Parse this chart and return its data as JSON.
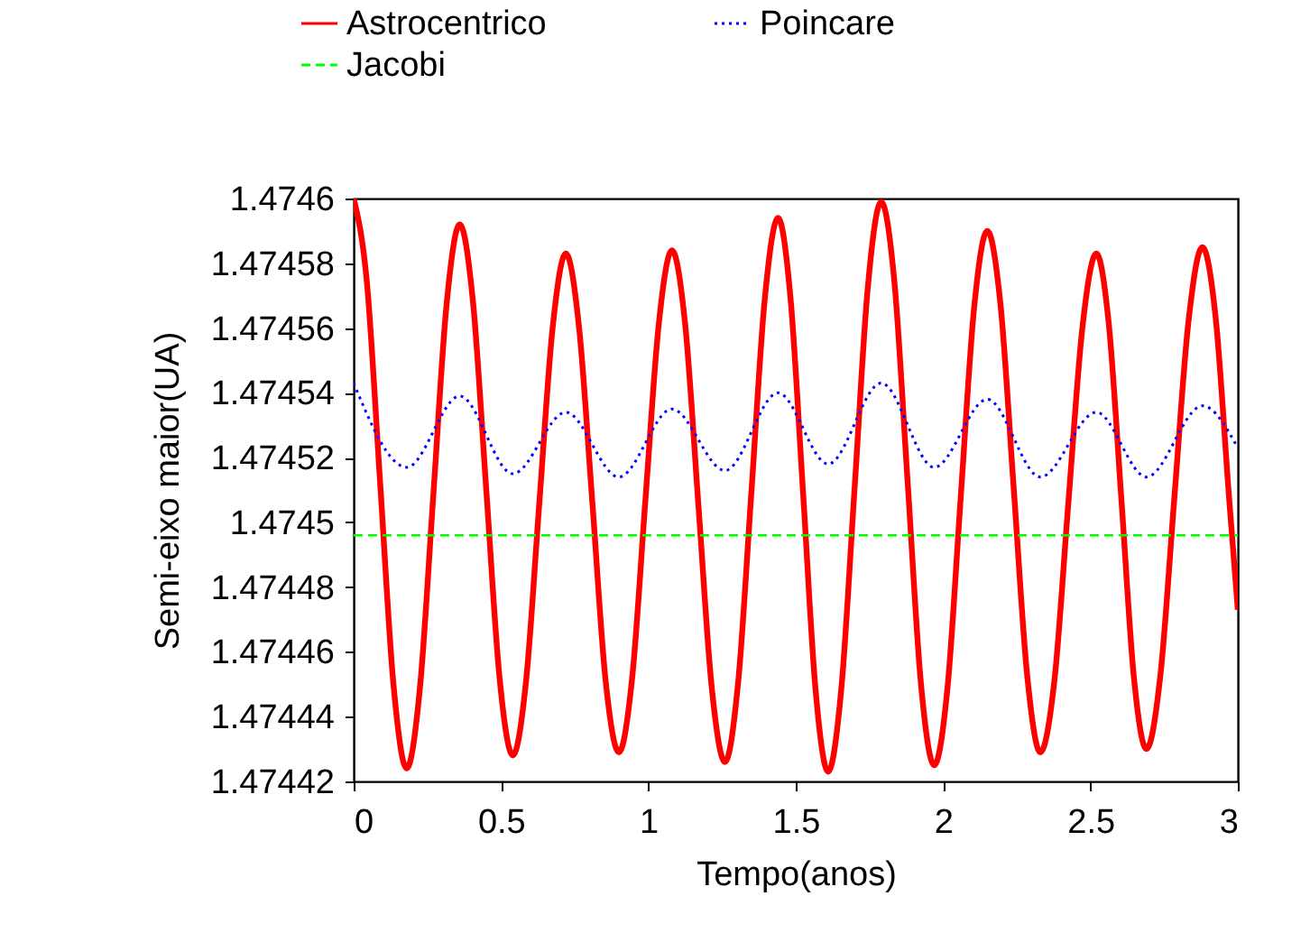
{
  "chart_data": {
    "type": "line",
    "xlabel": "Tempo(anos)",
    "ylabel": "Semi-eixo maior(UA)",
    "xlim": [
      0,
      3
    ],
    "xticks": [
      0,
      0.5,
      1,
      1.5,
      2,
      2.5,
      3
    ],
    "ylim": [
      1.47442,
      1.4746
    ],
    "yticks": [
      1.47442,
      1.47444,
      1.47446,
      1.47448,
      1.4745,
      1.47452,
      1.47454,
      1.47456,
      1.47458,
      1.4746
    ],
    "grid": false,
    "legend": "top",
    "series": [
      {
        "name": "Astrocentrico",
        "color": "#ff0000",
        "line_style": "solid",
        "x": [
          0,
          0.045,
          0.09,
          0.135,
          0.18,
          0.225,
          0.27,
          0.315,
          0.36,
          0.405,
          0.45,
          0.495,
          0.54,
          0.585,
          0.63,
          0.675,
          0.72,
          0.765,
          0.81,
          0.855,
          0.9,
          0.945,
          0.99,
          1.035,
          1.08,
          1.125,
          1.17,
          1.215,
          1.26,
          1.305,
          1.35,
          1.395,
          1.44,
          1.4825,
          1.525,
          1.5675,
          1.61,
          1.655,
          1.7,
          1.745,
          1.79,
          1.835,
          1.88,
          1.925,
          1.97,
          2.015,
          2.06,
          2.105,
          2.15,
          2.195,
          2.24,
          2.285,
          2.33,
          2.3775,
          2.425,
          2.4725,
          2.52,
          2.5625,
          2.605,
          2.6475,
          2.69,
          2.7375,
          2.785,
          2.8325,
          2.88,
          2.925,
          2.97,
          3
        ],
        "values": [
          1.4746,
          1.474574,
          1.474512,
          1.47445,
          1.474424,
          1.474449,
          1.474508,
          1.474567,
          1.474592,
          1.474568,
          1.47451,
          1.474452,
          1.474428,
          1.474451,
          1.474506,
          1.47456,
          1.474583,
          1.47456,
          1.474506,
          1.474451,
          1.474429,
          1.474452,
          1.474507,
          1.474561,
          1.474584,
          1.474561,
          1.474505,
          1.474449,
          1.474426,
          1.474451,
          1.47451,
          1.474569,
          1.474594,
          1.474569,
          1.474509,
          1.474448,
          1.474423,
          1.474449,
          1.474511,
          1.474573,
          1.474599,
          1.474574,
          1.474512,
          1.47445,
          1.474425,
          1.474449,
          1.474508,
          1.474566,
          1.47459,
          1.474567,
          1.47451,
          1.474453,
          1.474429,
          1.474451,
          1.474506,
          1.47456,
          1.474583,
          1.474561,
          1.474507,
          1.474452,
          1.47443,
          1.474453,
          1.474508,
          1.474562,
          1.474585,
          1.474563,
          1.474508,
          1.474473
        ]
      },
      {
        "name": "Poincare",
        "color": "#0000ff",
        "line_style": "dotted",
        "x": [
          0,
          0.18,
          0.36,
          0.54,
          0.72,
          0.9,
          1.08,
          1.26,
          1.44,
          1.61,
          1.79,
          1.97,
          2.15,
          2.33,
          2.52,
          2.69,
          2.88,
          3
        ],
        "values": [
          1.474543,
          1.474517,
          1.474539,
          1.474515,
          1.474534,
          1.474514,
          1.474535,
          1.474516,
          1.47454,
          1.474518,
          1.474543,
          1.474517,
          1.474538,
          1.474514,
          1.474534,
          1.474514,
          1.474536,
          1.474523
        ]
      },
      {
        "name": "Jacobi",
        "color": "#00ff00",
        "line_style": "dashed",
        "x": [
          0,
          0.5,
          1,
          1.5,
          2,
          2.5,
          3
        ],
        "values": [
          1.474496,
          1.474496,
          1.474496,
          1.474496,
          1.474496,
          1.474496,
          1.474496
        ]
      }
    ]
  }
}
